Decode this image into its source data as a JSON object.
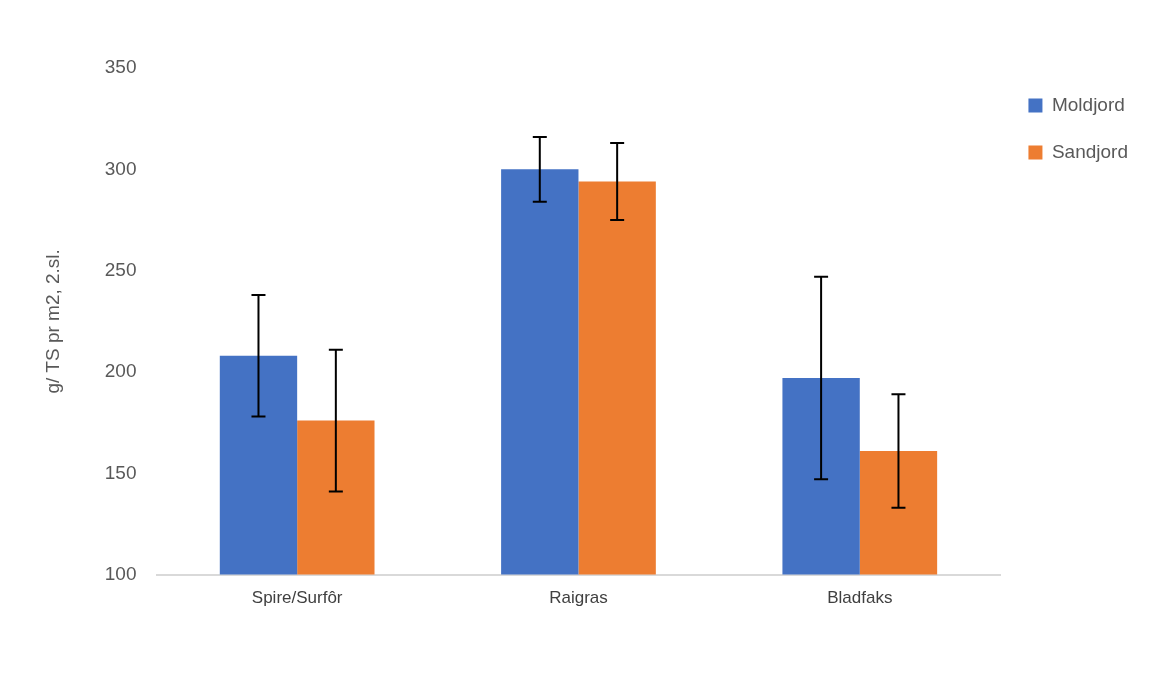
{
  "chart_data": {
    "type": "bar",
    "ylabel": "g/ TS pr m2, 2.sl.",
    "categories": [
      "Spire/Surfôr",
      "Raigras",
      "Bladfaks"
    ],
    "series": [
      {
        "name": "Moldjord",
        "color": "#4472c4",
        "values": [
          208,
          300,
          197
        ],
        "errors": [
          30,
          16,
          50
        ]
      },
      {
        "name": "Sandjord",
        "color": "#ed7d31",
        "values": [
          176,
          294,
          161
        ],
        "errors": [
          35,
          19,
          28
        ]
      }
    ],
    "ylim": [
      100,
      350
    ],
    "yticks": [
      100,
      150,
      200,
      250,
      300,
      350
    ],
    "grid": false,
    "legend": "top right"
  }
}
